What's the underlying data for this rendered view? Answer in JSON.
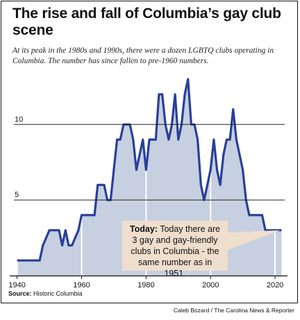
{
  "title": "The rise and fall of Columbia’s gay club scene",
  "subtitle": "At its peak in the 1980s and 1990s, there were a dozen LGBTQ clubs operating in Columbia. The number has since fallen to pre-1960 numbers.",
  "source": {
    "label": "Source:",
    "text": "Historic Columbia"
  },
  "credit": "Caleb Bozard / The Carolina News & Reporter",
  "annotation": {
    "lead": "Today:",
    "text": "Today there are 3 gay and gay-friendly clubs in Columbia - the same number as in 1951."
  },
  "colors": {
    "line": "#2a3f99",
    "fill": "#c6d0e0",
    "callout": "#efdecd"
  },
  "chart_data": {
    "type": "area",
    "title": "The rise and fall of Columbia’s gay club scene",
    "xlabel": "",
    "ylabel": "",
    "xlim": [
      1939,
      2023
    ],
    "ylim": [
      0,
      13
    ],
    "x_ticks": [
      1940,
      1960,
      1980,
      2000,
      2020
    ],
    "y_ticks": [
      5,
      10
    ],
    "grid": "horizontal at y ticks",
    "series": [
      {
        "x": [
          1940,
          1946,
          1947,
          1948,
          1950,
          1953,
          1954,
          1955,
          1956,
          1957,
          1958,
          1959,
          1960,
          1961,
          1962,
          1963,
          1964,
          1965,
          1966,
          1967,
          1968,
          1969,
          1970,
          1971,
          1972,
          1973,
          1974,
          1975,
          1976,
          1977,
          1978,
          1979,
          1980,
          1981,
          1982,
          1983,
          1984,
          1985,
          1986,
          1987,
          1988,
          1989,
          1990,
          1991,
          1992,
          1993,
          1994,
          1995,
          1996,
          1997,
          1998,
          1999,
          2000,
          2001,
          2002,
          2003,
          2004,
          2005,
          2006,
          2007,
          2008,
          2009,
          2010,
          2011,
          2012,
          2013,
          2014,
          2015,
          2016,
          2017,
          2018,
          2019,
          2020,
          2021,
          2022
        ],
        "y": [
          1,
          1,
          1,
          2,
          3,
          3,
          2,
          3,
          2,
          2,
          2.5,
          3,
          4,
          4,
          4,
          4,
          4,
          6,
          6,
          6,
          5,
          5,
          7,
          9,
          9,
          10,
          10,
          10,
          9,
          7,
          8,
          9,
          7,
          9,
          9,
          9,
          12,
          12,
          10,
          9,
          10,
          12,
          9,
          10,
          12,
          13,
          10,
          10,
          9,
          6,
          5,
          6,
          7,
          9,
          7,
          6,
          8,
          9,
          9,
          11,
          9,
          8,
          7,
          5,
          4,
          4,
          4,
          4,
          4,
          3,
          3,
          3,
          3,
          3,
          3
        ]
      }
    ]
  }
}
